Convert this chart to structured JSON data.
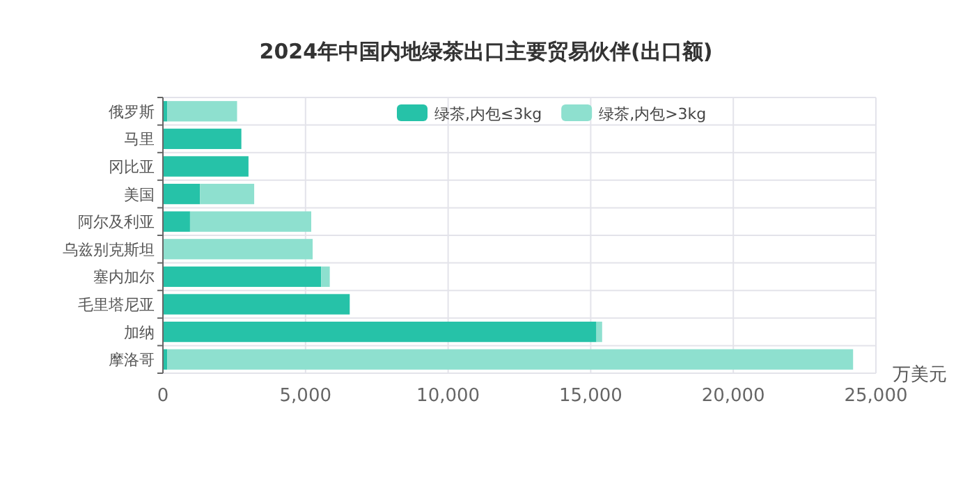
{
  "chart_data": {
    "type": "bar",
    "title": "2024年中国内地绿茶出口主要贸易伙伴(出口额)",
    "xlabel": "万美元",
    "orientation": "horizontal",
    "stacked": true,
    "grid": true,
    "legend": "top right",
    "categories": [
      "俄罗斯",
      "马里",
      "冈比亚",
      "美国",
      "阿尔及利亚",
      "乌兹别克斯坦",
      "塞内加尔",
      "毛里塔尼亚",
      "加纳",
      "摩洛哥"
    ],
    "series": [
      {
        "name": "绿茶,内包≤3kg",
        "color": "#26c2a8",
        "values": [
          150,
          2750,
          3000,
          1300,
          950,
          0,
          5550,
          6550,
          15200,
          150
        ]
      },
      {
        "name": "绿茶,内包>3kg",
        "color": "#8ee0cf",
        "values": [
          2450,
          0,
          0,
          1900,
          4250,
          5250,
          300,
          0,
          200,
          24050
        ]
      }
    ],
    "xlim": [
      0,
      25000
    ],
    "xticks": [
      {
        "value": 0,
        "label": "0"
      },
      {
        "value": 5000,
        "label": "5,000"
      },
      {
        "value": 10000,
        "label": "10,000"
      },
      {
        "value": 15000,
        "label": "15,000"
      },
      {
        "value": 20000,
        "label": "20,000"
      },
      {
        "value": 25000,
        "label": "25,000"
      }
    ]
  }
}
